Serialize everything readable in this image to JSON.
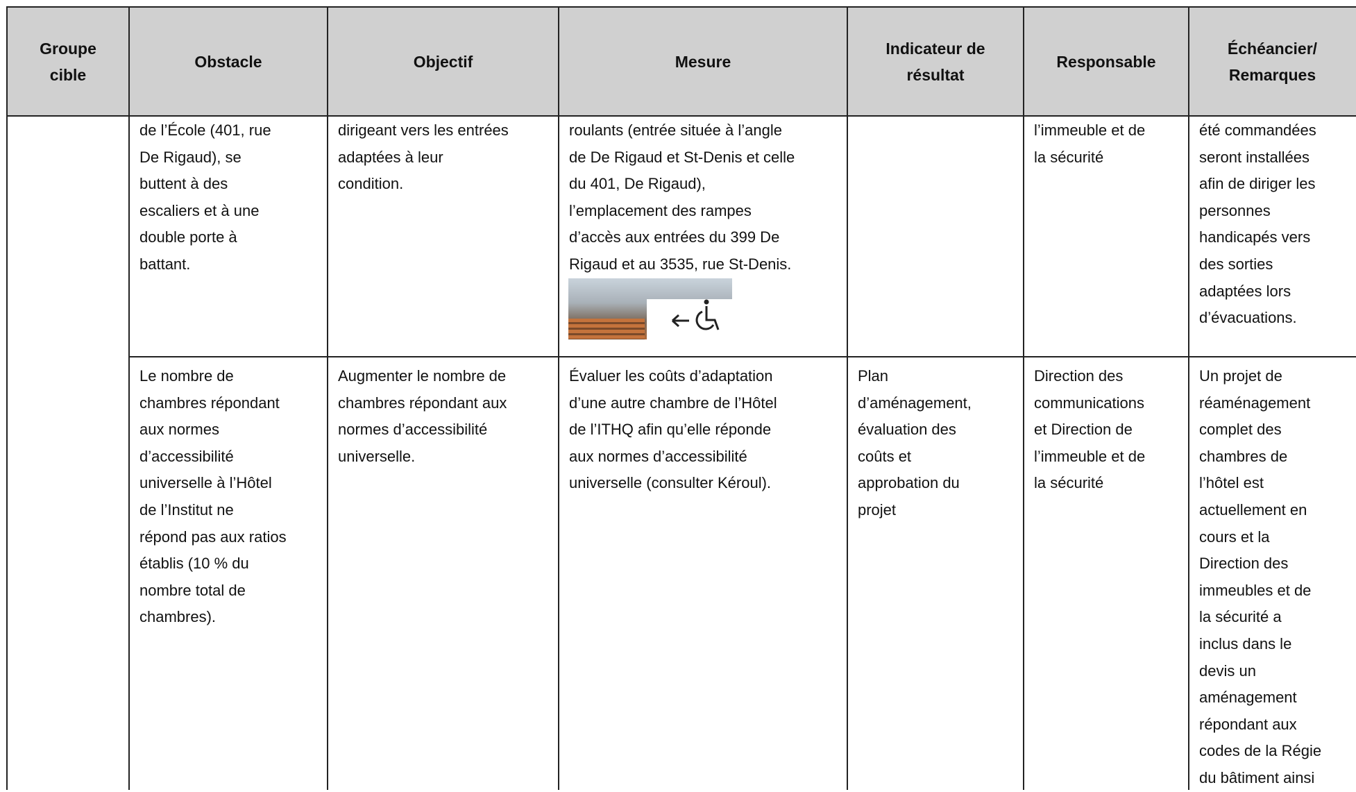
{
  "table": {
    "header": [
      [
        "Groupe",
        "cible"
      ],
      [
        "Obstacle"
      ],
      [
        "Objectif"
      ],
      [
        "Mesure"
      ],
      [
        "Indicateur de",
        "résultat"
      ],
      [
        "Responsable"
      ],
      [
        "Échéancier/",
        "Remarques"
      ]
    ],
    "rows": [
      [
        [],
        [
          "de l’École (401, rue",
          "De Rigaud), se",
          "buttent à des",
          "escaliers et à une",
          "double porte à",
          "battant."
        ],
        [
          "dirigeant vers les entrées",
          "adaptées à leur",
          "condition."
        ],
        [
          "roulants (entrée située à l’angle",
          "de De Rigaud et St-Denis et celle",
          "du 401, De Rigaud),",
          "l’emplacement des rampes",
          "d’accès aux entrées du 399 De",
          "Rigaud et au 3535, rue St-Denis."
        ],
        [],
        [
          "l’immeuble et de",
          "la sécurité"
        ],
        [
          "été commandées",
          "seront installées",
          "afin de diriger les",
          "personnes",
          "handicapés vers",
          "des sorties",
          "adaptées lors",
          "d’évacuations."
        ]
      ],
      [
        [],
        [
          "Le nombre de",
          "chambres répondant",
          "aux normes",
          "d’accessibilité",
          "universelle à l’Hôtel",
          "de l’Institut ne",
          "répond pas aux ratios",
          "établis (10 % du",
          "nombre total de",
          "chambres)."
        ],
        [
          "Augmenter le nombre de",
          "chambres répondant aux",
          "normes d’accessibilité",
          "universelle."
        ],
        [
          "Évaluer les coûts d’adaptation",
          "d’une autre chambre de l’Hôtel",
          "de l’ITHQ afin qu’elle réponde",
          "aux normes d’accessibilité",
          "universelle (consulter Kéroul)."
        ],
        [
          "Plan",
          "d’aménagement,",
          "évaluation des",
          "coûts et",
          "approbation du",
          "projet"
        ],
        [
          "Direction des",
          "communications",
          "et Direction de",
          "l’immeuble et de",
          "la sécurité"
        ],
        [
          "Un projet de",
          "réaménagement",
          "complet des",
          "chambres de",
          "l’hôtel est",
          "actuellement en",
          "cours et la",
          "Direction des",
          "immeubles et de",
          "la sécurité a",
          "inclus dans le",
          "devis un",
          "aménagement",
          "répondant aux",
          "codes de la Régie",
          "du bâtiment ainsi"
        ]
      ]
    ]
  }
}
